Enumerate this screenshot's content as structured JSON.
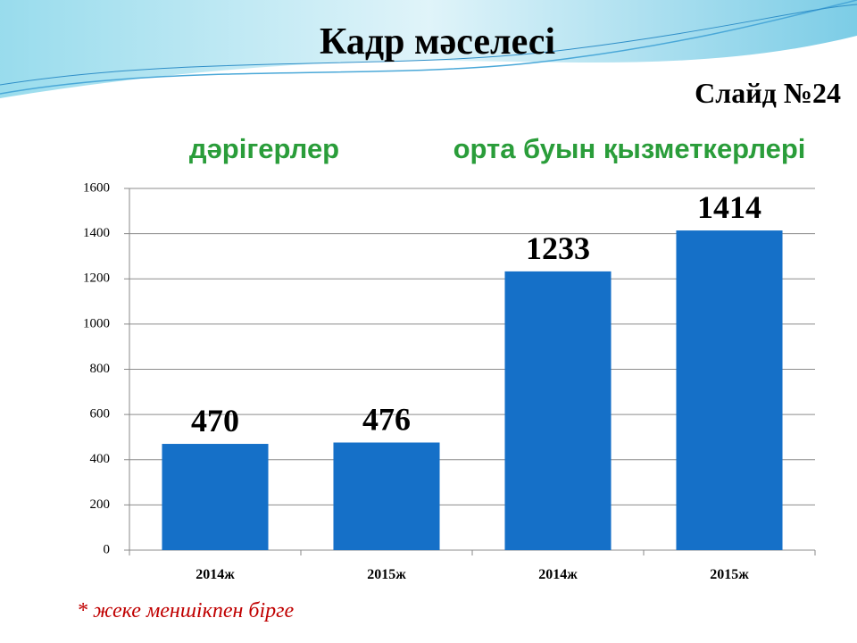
{
  "chart_data": {
    "type": "bar",
    "title": "Кадр  мәселесі",
    "subtitle": "Слайд №24",
    "groups": [
      "дәрігерлер",
      "орта буын қызметкерлері"
    ],
    "categories": [
      "2014ж",
      "2015ж",
      "2014ж",
      "2015ж"
    ],
    "values": [
      470,
      476,
      1233,
      1414
    ],
    "color": "#1570c8",
    "ylim": [
      0,
      1600
    ],
    "yticks": [
      0,
      200,
      400,
      600,
      800,
      1000,
      1200,
      1400,
      1600
    ],
    "grid": true,
    "note": "* жеке меншікпен бірге"
  }
}
